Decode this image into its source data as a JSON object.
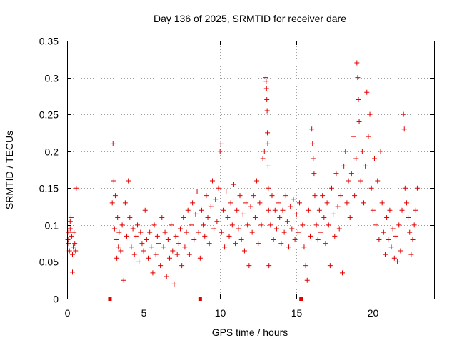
{
  "chart_data": {
    "type": "scatter",
    "title": "Day 136 of 2025, SRMTID for receiver dare",
    "xlabel": "GPS time / hours",
    "ylabel": "SRMTID / TECUs",
    "xlim": [
      0,
      24
    ],
    "ylim": [
      0,
      0.35
    ],
    "xticks": [
      0,
      5,
      10,
      15,
      20
    ],
    "xtick_labels": [
      "0",
      "5",
      "10",
      "15",
      "20"
    ],
    "yticks": [
      0,
      0.05,
      0.1,
      0.15,
      0.2,
      0.25,
      0.3,
      0.35
    ],
    "ytick_labels": [
      "0",
      "0.05",
      "0.1",
      "0.15",
      "0.2",
      "0.25",
      "0.3",
      "0.35"
    ],
    "grid": true,
    "marker": "+",
    "color": "#e00000",
    "series": [
      {
        "name": "SRMTID",
        "points": [
          [
            0.05,
            0.08
          ],
          [
            0.1,
            0.075
          ],
          [
            0.15,
            0.065
          ],
          [
            0.2,
            0.095
          ],
          [
            0.25,
            0.11
          ],
          [
            0.3,
            0.085
          ],
          [
            0.35,
            0.06
          ],
          [
            0.4,
            0.07
          ],
          [
            0.45,
            0.09
          ],
          [
            0.5,
            0.075
          ],
          [
            0.55,
            0.065
          ],
          [
            0.6,
            0.15
          ],
          [
            0.35,
            0.036
          ],
          [
            0.2,
            0.105
          ],
          [
            0.1,
            0.09
          ],
          [
            2.8,
            0.0
          ],
          [
            2.95,
            0.13
          ],
          [
            3.0,
            0.21
          ],
          [
            3.05,
            0.16
          ],
          [
            3.1,
            0.095
          ],
          [
            3.15,
            0.14
          ],
          [
            3.2,
            0.08
          ],
          [
            3.25,
            0.055
          ],
          [
            3.3,
            0.11
          ],
          [
            3.35,
            0.07
          ],
          [
            3.4,
            0.09
          ],
          [
            3.5,
            0.065
          ],
          [
            3.6,
            0.1
          ],
          [
            3.7,
            0.025
          ],
          [
            3.8,
            0.13
          ],
          [
            3.9,
            0.085
          ],
          [
            4.0,
            0.16
          ],
          [
            4.1,
            0.11
          ],
          [
            4.2,
            0.07
          ],
          [
            4.3,
            0.095
          ],
          [
            4.4,
            0.06
          ],
          [
            4.5,
            0.085
          ],
          [
            4.6,
            0.1
          ],
          [
            4.7,
            0.05
          ],
          [
            4.8,
            0.09
          ],
          [
            4.9,
            0.075
          ],
          [
            5.0,
            0.065
          ],
          [
            5.1,
            0.12
          ],
          [
            5.2,
            0.08
          ],
          [
            5.3,
            0.055
          ],
          [
            5.4,
            0.09
          ],
          [
            5.5,
            0.07
          ],
          [
            5.6,
            0.035
          ],
          [
            5.7,
            0.1
          ],
          [
            5.8,
            0.06
          ],
          [
            5.9,
            0.085
          ],
          [
            6.0,
            0.075
          ],
          [
            6.1,
            0.045
          ],
          [
            6.2,
            0.11
          ],
          [
            6.3,
            0.07
          ],
          [
            6.4,
            0.09
          ],
          [
            6.5,
            0.03
          ],
          [
            6.6,
            0.08
          ],
          [
            6.7,
            0.055
          ],
          [
            6.8,
            0.1
          ],
          [
            6.9,
            0.065
          ],
          [
            7.0,
            0.02
          ],
          [
            7.1,
            0.085
          ],
          [
            7.2,
            0.06
          ],
          [
            7.3,
            0.075
          ],
          [
            7.4,
            0.095
          ],
          [
            7.5,
            0.045
          ],
          [
            7.6,
            0.11
          ],
          [
            7.7,
            0.07
          ],
          [
            7.8,
            0.09
          ],
          [
            7.9,
            0.12
          ],
          [
            8.0,
            0.06
          ],
          [
            8.1,
            0.1
          ],
          [
            8.2,
            0.13
          ],
          [
            8.3,
            0.08
          ],
          [
            8.4,
            0.115
          ],
          [
            8.5,
            0.145
          ],
          [
            8.6,
            0.09
          ],
          [
            8.7,
            0.055
          ],
          [
            8.8,
            0.12
          ],
          [
            8.9,
            0.1
          ],
          [
            8.7,
            0.0
          ],
          [
            9.0,
            0.085
          ],
          [
            9.1,
            0.14
          ],
          [
            9.2,
            0.11
          ],
          [
            9.3,
            0.075
          ],
          [
            9.4,
            0.125
          ],
          [
            9.5,
            0.16
          ],
          [
            9.6,
            0.095
          ],
          [
            9.7,
            0.135
          ],
          [
            9.8,
            0.105
          ],
          [
            9.9,
            0.15
          ],
          [
            10.0,
            0.2
          ],
          [
            10.05,
            0.21
          ],
          [
            10.1,
            0.09
          ],
          [
            10.2,
            0.12
          ],
          [
            10.3,
            0.07
          ],
          [
            10.4,
            0.145
          ],
          [
            10.5,
            0.11
          ],
          [
            10.6,
            0.085
          ],
          [
            10.7,
            0.13
          ],
          [
            10.8,
            0.1
          ],
          [
            10.9,
            0.155
          ],
          [
            11.0,
            0.075
          ],
          [
            11.1,
            0.12
          ],
          [
            11.2,
            0.095
          ],
          [
            11.3,
            0.14
          ],
          [
            11.4,
            0.08
          ],
          [
            11.5,
            0.115
          ],
          [
            11.6,
            0.065
          ],
          [
            11.7,
            0.13
          ],
          [
            11.8,
            0.1
          ],
          [
            11.9,
            0.045
          ],
          [
            12.0,
            0.125
          ],
          [
            12.1,
            0.09
          ],
          [
            12.2,
            0.14
          ],
          [
            12.3,
            0.11
          ],
          [
            12.4,
            0.16
          ],
          [
            12.5,
            0.075
          ],
          [
            12.6,
            0.13
          ],
          [
            12.7,
            0.1
          ],
          [
            12.8,
            0.19
          ],
          [
            12.9,
            0.2
          ],
          [
            13.0,
            0.3
          ],
          [
            13.02,
            0.295
          ],
          [
            13.04,
            0.285
          ],
          [
            13.06,
            0.27
          ],
          [
            13.08,
            0.255
          ],
          [
            13.1,
            0.225
          ],
          [
            13.12,
            0.21
          ],
          [
            13.14,
            0.18
          ],
          [
            13.16,
            0.15
          ],
          [
            13.18,
            0.12
          ],
          [
            13.2,
            0.045
          ],
          [
            13.3,
            0.1
          ],
          [
            13.4,
            0.14
          ],
          [
            13.5,
            0.08
          ],
          [
            13.6,
            0.12
          ],
          [
            13.7,
            0.095
          ],
          [
            13.8,
            0.13
          ],
          [
            13.9,
            0.11
          ],
          [
            14.0,
            0.075
          ],
          [
            14.1,
            0.12
          ],
          [
            14.2,
            0.09
          ],
          [
            14.3,
            0.14
          ],
          [
            14.4,
            0.105
          ],
          [
            14.5,
            0.07
          ],
          [
            14.6,
            0.125
          ],
          [
            14.7,
            0.095
          ],
          [
            14.8,
            0.135
          ],
          [
            14.9,
            0.08
          ],
          [
            15.0,
            0.115
          ],
          [
            15.1,
            0.09
          ],
          [
            15.2,
            0.13
          ],
          [
            15.3,
            0.0
          ],
          [
            15.4,
            0.1
          ],
          [
            15.5,
            0.07
          ],
          [
            15.6,
            0.045
          ],
          [
            15.7,
            0.025
          ],
          [
            15.8,
            0.12
          ],
          [
            15.9,
            0.085
          ],
          [
            16.0,
            0.23
          ],
          [
            16.05,
            0.21
          ],
          [
            16.1,
            0.19
          ],
          [
            16.15,
            0.17
          ],
          [
            16.2,
            0.14
          ],
          [
            16.3,
            0.1
          ],
          [
            16.4,
            0.08
          ],
          [
            16.5,
            0.12
          ],
          [
            16.6,
            0.09
          ],
          [
            16.7,
            0.14
          ],
          [
            16.8,
            0.11
          ],
          [
            16.9,
            0.075
          ],
          [
            17.0,
            0.13
          ],
          [
            17.1,
            0.1
          ],
          [
            17.2,
            0.045
          ],
          [
            17.3,
            0.15
          ],
          [
            17.4,
            0.115
          ],
          [
            17.5,
            0.085
          ],
          [
            17.6,
            0.17
          ],
          [
            17.7,
            0.125
          ],
          [
            17.8,
            0.095
          ],
          [
            17.9,
            0.14
          ],
          [
            18.0,
            0.035
          ],
          [
            18.1,
            0.18
          ],
          [
            18.2,
            0.2
          ],
          [
            18.3,
            0.13
          ],
          [
            18.4,
            0.16
          ],
          [
            18.5,
            0.11
          ],
          [
            18.6,
            0.17
          ],
          [
            18.7,
            0.22
          ],
          [
            18.8,
            0.14
          ],
          [
            18.9,
            0.19
          ],
          [
            18.95,
            0.32
          ],
          [
            19.0,
            0.3
          ],
          [
            19.05,
            0.27
          ],
          [
            19.1,
            0.24
          ],
          [
            19.2,
            0.16
          ],
          [
            19.3,
            0.2
          ],
          [
            19.4,
            0.13
          ],
          [
            19.5,
            0.18
          ],
          [
            19.6,
            0.28
          ],
          [
            19.7,
            0.22
          ],
          [
            19.8,
            0.25
          ],
          [
            19.9,
            0.15
          ],
          [
            20.0,
            0.12
          ],
          [
            20.1,
            0.19
          ],
          [
            20.2,
            0.1
          ],
          [
            20.3,
            0.16
          ],
          [
            20.4,
            0.08
          ],
          [
            20.5,
            0.2
          ],
          [
            20.6,
            0.13
          ],
          [
            20.7,
            0.09
          ],
          [
            20.8,
            0.06
          ],
          [
            20.9,
            0.11
          ],
          [
            21.0,
            0.08
          ],
          [
            21.1,
            0.12
          ],
          [
            21.2,
            0.07
          ],
          [
            21.3,
            0.095
          ],
          [
            21.4,
            0.055
          ],
          [
            21.5,
            0.085
          ],
          [
            21.6,
            0.05
          ],
          [
            21.7,
            0.1
          ],
          [
            21.8,
            0.065
          ],
          [
            21.9,
            0.12
          ],
          [
            22.0,
            0.25
          ],
          [
            22.05,
            0.23
          ],
          [
            22.1,
            0.15
          ],
          [
            22.2,
            0.13
          ],
          [
            22.3,
            0.11
          ],
          [
            22.4,
            0.09
          ],
          [
            22.5,
            0.06
          ],
          [
            22.6,
            0.08
          ],
          [
            22.7,
            0.1
          ],
          [
            22.8,
            0.12
          ],
          [
            22.9,
            0.15
          ]
        ]
      }
    ]
  }
}
